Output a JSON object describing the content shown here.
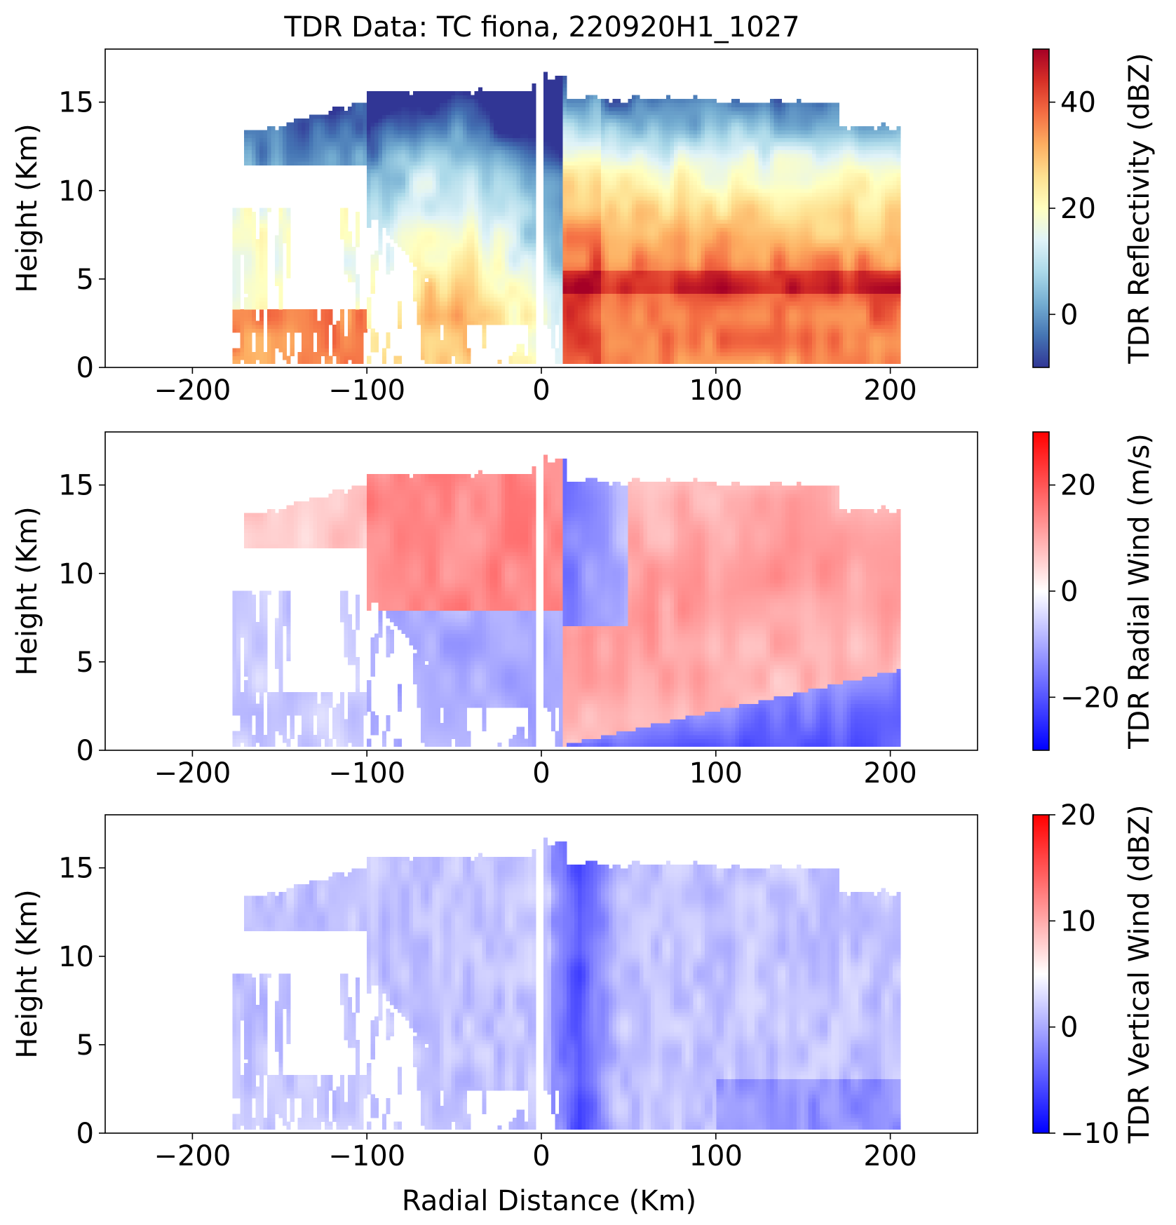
{
  "chart_data": {
    "type": "heatmap",
    "title": "TDR Data: TC fiona, 220920H1_1027",
    "xlabel": "Radial Distance (Km)",
    "xlim": [
      -250,
      250
    ],
    "ylim": [
      0,
      18
    ],
    "x_ticks": [
      -200,
      -100,
      0,
      100,
      200
    ],
    "x_tick_labels": [
      "−200",
      "−100",
      "0",
      "100",
      "200"
    ],
    "y_ticks": [
      0,
      5,
      10,
      15
    ],
    "y_tick_labels": [
      "0",
      "5",
      "10",
      "15"
    ],
    "data_extent_x": [
      -177,
      206
    ],
    "panels": [
      {
        "ylabel": "Height (Km)",
        "colorbar_label": "TDR Reflectivity (dBZ)",
        "colormap": "RdYlBu_r",
        "colormap_stops": [
          "#313695",
          "#4575b4",
          "#74add1",
          "#abd9e9",
          "#e0f3f8",
          "#ffffbf",
          "#fee090",
          "#fdae61",
          "#f46d43",
          "#d73027",
          "#a50026"
        ],
        "clim": [
          -10,
          50
        ],
        "colorbar_ticks": [
          -0.001,
          20,
          40
        ],
        "colorbar_tick_labels": [
          "0",
          "20",
          "40"
        ],
        "colorbar_tick_values": [
          0,
          20,
          40
        ]
      },
      {
        "ylabel": "Height (Km)",
        "colorbar_label": "TDR Radial Wind (m/s)",
        "colormap": "bwr",
        "colormap_stops": [
          "#0000ff",
          "#ffffff",
          "#ff0000"
        ],
        "clim": [
          -30,
          30
        ],
        "colorbar_tick_labels": [
          "−20",
          "0",
          "20"
        ],
        "colorbar_tick_values": [
          -20,
          0,
          20
        ]
      },
      {
        "ylabel": "Height (Km)",
        "colorbar_label": "TDR Vertical Wind (dBZ)",
        "colormap": "bwr",
        "colormap_stops": [
          "#0000ff",
          "#ffffff",
          "#ff0000"
        ],
        "clim": [
          -10,
          20
        ],
        "colorbar_tick_labels": [
          "−10",
          "0",
          "10",
          "20"
        ],
        "colorbar_tick_values": [
          -10,
          0,
          10,
          20
        ]
      }
    ]
  }
}
